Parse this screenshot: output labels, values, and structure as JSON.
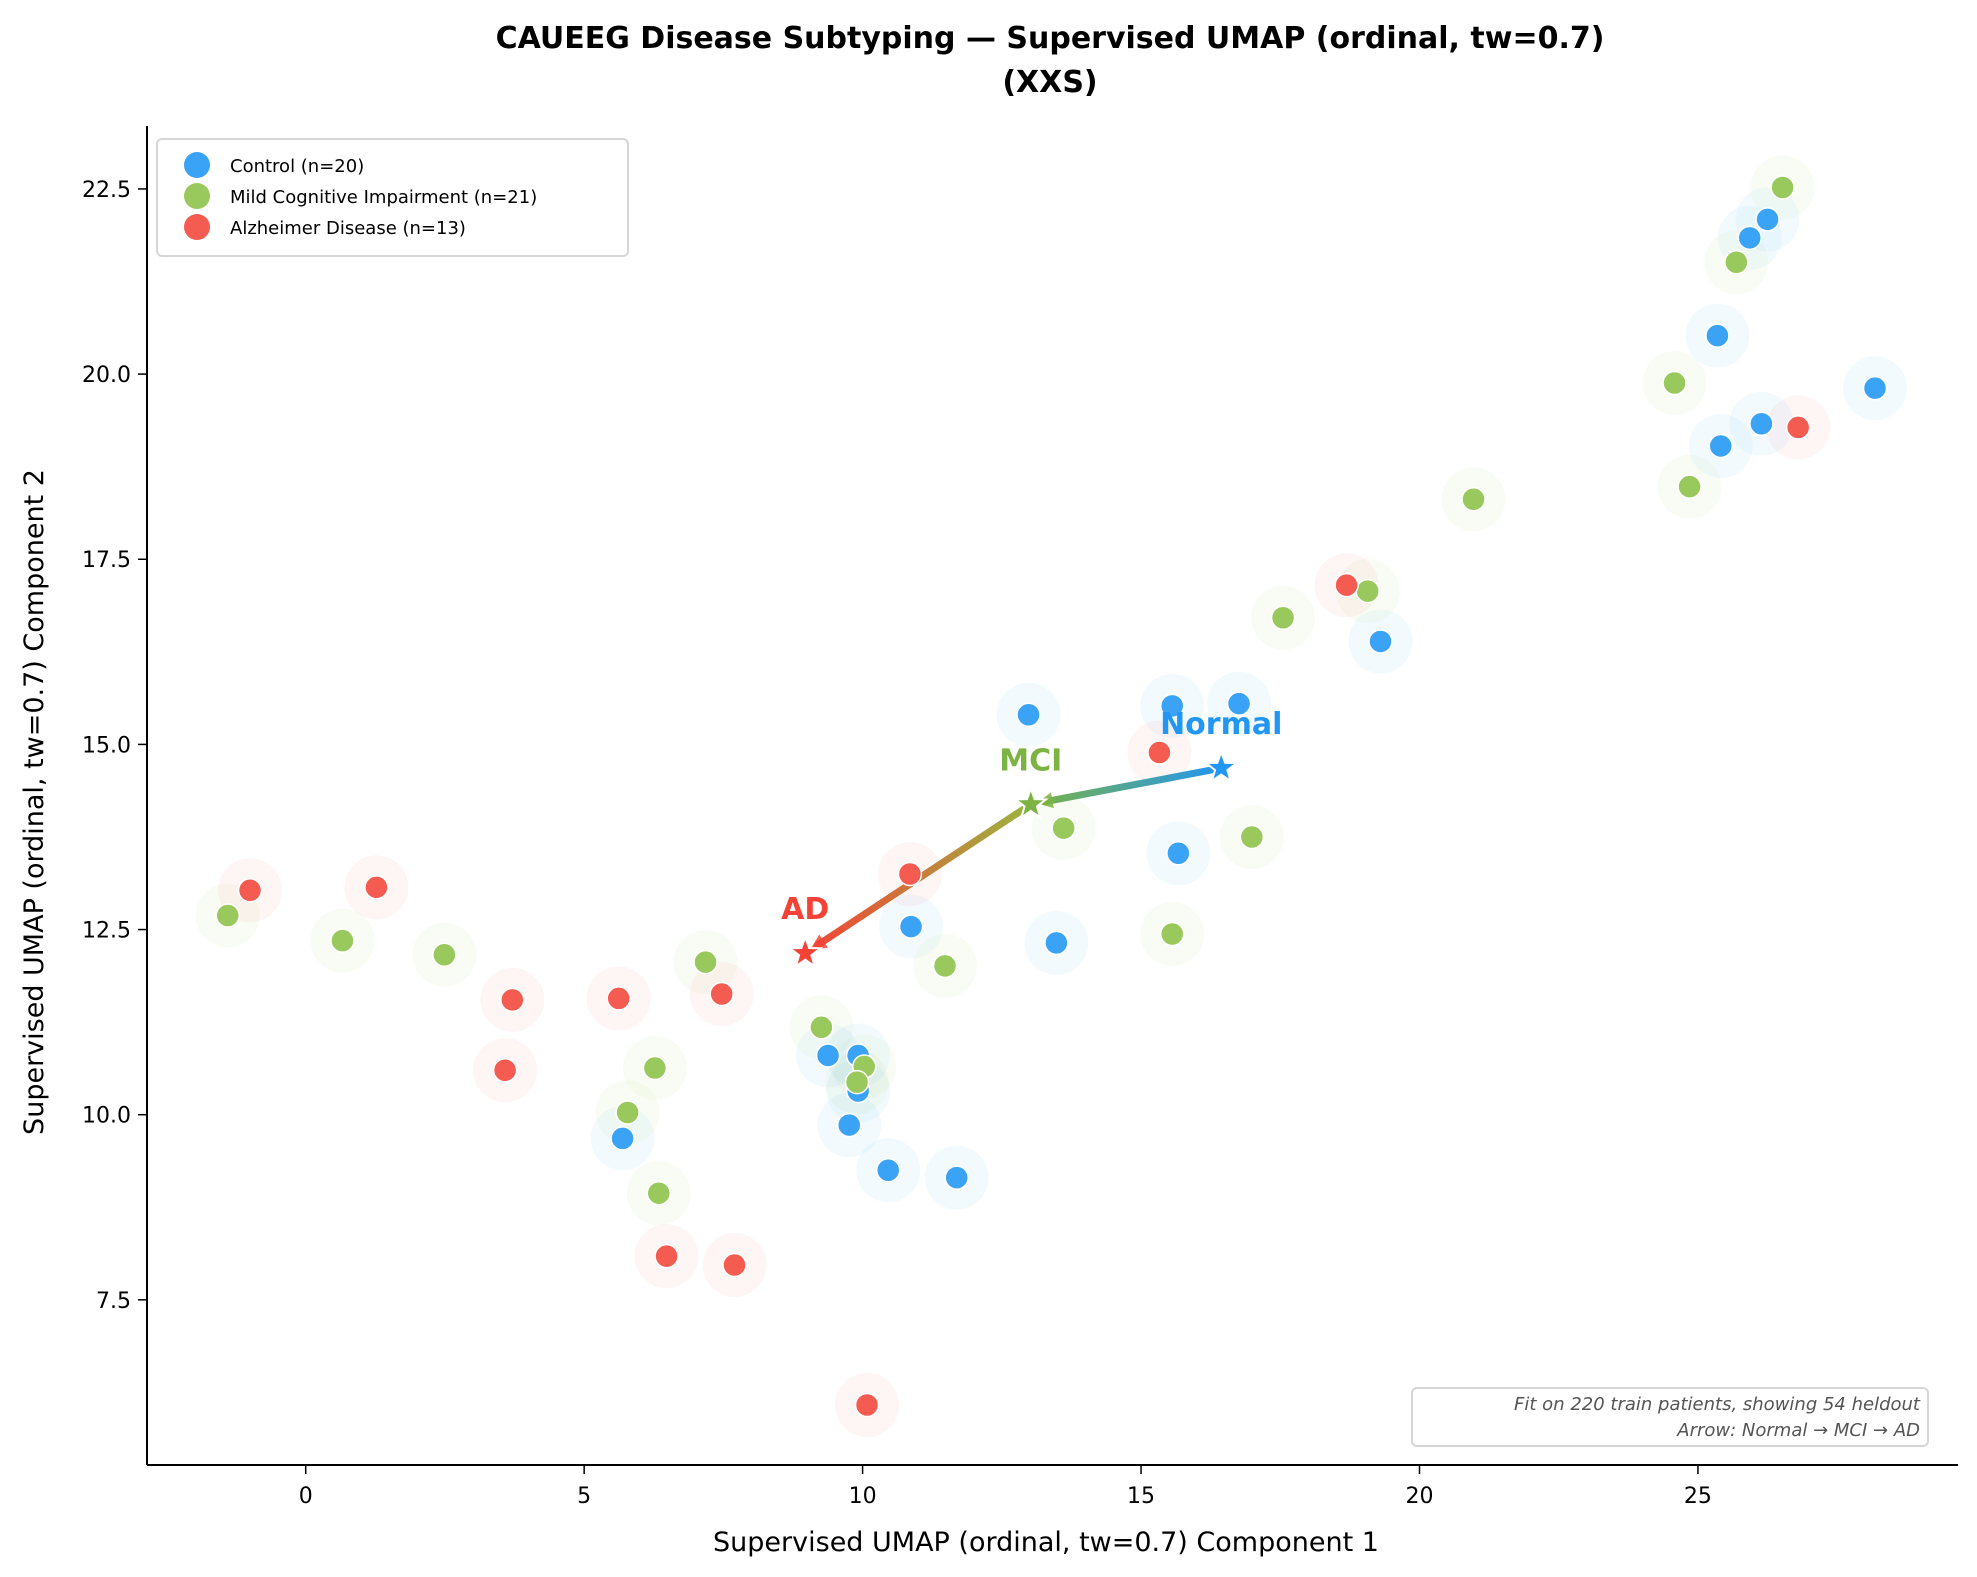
{
  "chart_data": {
    "type": "scatter",
    "title": "CAUEEG Disease Subtyping — Supervised UMAP (ordinal, tw=0.7)",
    "subtitle": "(XXS)",
    "xlabel": "Supervised UMAP (ordinal, tw=0.7) Component 1",
    "ylabel": "Supervised UMAP (ordinal, tw=0.7) Component 2",
    "xlim": [
      -2.85,
      29.67
    ],
    "ylim": [
      5.27,
      23.35
    ],
    "xticks": [
      0,
      5,
      10,
      15,
      20,
      25
    ],
    "xtick_labels": [
      "0",
      "5",
      "10",
      "15",
      "20",
      "25"
    ],
    "yticks": [
      7.5,
      10.0,
      12.5,
      15.0,
      17.5,
      20.0,
      22.5
    ],
    "ytick_labels": [
      "7.5",
      "10.0",
      "12.5",
      "15.0",
      "17.5",
      "20.0",
      "22.5"
    ],
    "grid": false,
    "legend_position": "top-left",
    "series": [
      {
        "name": "Control (n=20)",
        "short": "Normal",
        "color": "#3ba3f5",
        "points": [
          [
            26.25,
            22.09
          ],
          [
            25.93,
            21.84
          ],
          [
            25.35,
            20.52
          ],
          [
            28.18,
            19.81
          ],
          [
            26.14,
            19.33
          ],
          [
            25.41,
            19.03
          ],
          [
            19.3,
            16.39
          ],
          [
            12.98,
            15.4
          ],
          [
            15.56,
            15.52
          ],
          [
            16.76,
            15.55
          ],
          [
            15.67,
            13.53
          ],
          [
            10.87,
            12.54
          ],
          [
            13.48,
            12.32
          ],
          [
            9.38,
            10.8
          ],
          [
            9.92,
            10.8
          ],
          [
            9.92,
            10.32
          ],
          [
            9.76,
            9.86
          ],
          [
            5.69,
            9.68
          ],
          [
            10.46,
            9.25
          ],
          [
            11.69,
            9.15
          ]
        ]
      },
      {
        "name": "Mild Cognitive Impairment (n=21)",
        "short": "MCI",
        "color": "#99c95c",
        "points": [
          [
            26.52,
            22.52
          ],
          [
            25.69,
            21.51
          ],
          [
            24.58,
            19.88
          ],
          [
            24.85,
            18.48
          ],
          [
            20.97,
            18.31
          ],
          [
            19.07,
            17.07
          ],
          [
            17.55,
            16.71
          ],
          [
            13.61,
            13.87
          ],
          [
            16.99,
            13.75
          ],
          [
            15.56,
            12.44
          ],
          [
            11.48,
            12.01
          ],
          [
            7.18,
            12.06
          ],
          [
            2.49,
            12.16
          ],
          [
            0.66,
            12.35
          ],
          [
            -1.4,
            12.69
          ],
          [
            9.26,
            11.18
          ],
          [
            10.03,
            10.65
          ],
          [
            9.9,
            10.44
          ],
          [
            6.27,
            10.63
          ],
          [
            5.78,
            10.03
          ],
          [
            6.34,
            8.94
          ]
        ]
      },
      {
        "name": "Alzheimer Disease (n=13)",
        "short": "AD",
        "color": "#f45b51",
        "points": [
          [
            26.8,
            19.28
          ],
          [
            18.69,
            17.15
          ],
          [
            15.33,
            14.89
          ],
          [
            10.85,
            13.25
          ],
          [
            1.27,
            13.07
          ],
          [
            -1.0,
            13.03
          ],
          [
            7.47,
            11.63
          ],
          [
            3.71,
            11.55
          ],
          [
            5.62,
            11.57
          ],
          [
            3.58,
            10.6
          ],
          [
            6.48,
            8.09
          ],
          [
            7.7,
            7.97
          ],
          [
            10.08,
            6.08
          ]
        ]
      }
    ],
    "centroids": [
      {
        "label": "Normal",
        "x": 16.44,
        "y": 14.68,
        "color": "#2196f3"
      },
      {
        "label": "MCI",
        "x": 13.02,
        "y": 14.19,
        "color": "#7cb342"
      },
      {
        "label": "AD",
        "x": 8.97,
        "y": 12.18,
        "color": "#f44336"
      }
    ],
    "arrow_path": [
      "Normal",
      "MCI",
      "AD"
    ],
    "annotation": {
      "line1": "Fit on 220 train patients, showing 54 heldout",
      "line2": "Arrow: Normal → MCI → AD",
      "position": "bottom-right"
    }
  }
}
